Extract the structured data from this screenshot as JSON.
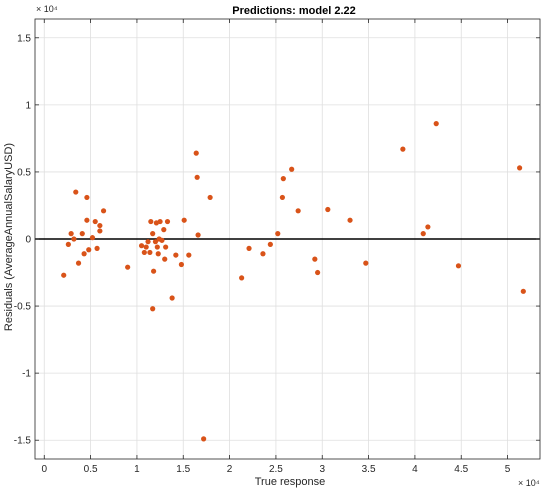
{
  "chart_data": {
    "type": "scatter",
    "title": "Predictions: model 2.22",
    "xlabel": "True response",
    "ylabel": "Residuals (AverageAnnualSalaryUSD)",
    "x_multiplier_label": "× 10⁴",
    "y_multiplier_label": "× 10⁴",
    "xlim": [
      -0.1,
      5.35
    ],
    "ylim": [
      -1.64,
      1.64
    ],
    "x_ticks": [
      0,
      0.5,
      1,
      1.5,
      2,
      2.5,
      3,
      3.5,
      4,
      4.5,
      5
    ],
    "x_tick_labels": [
      "0",
      "0.5",
      "1",
      "1.5",
      "2",
      "2.5",
      "3",
      "3.5",
      "4",
      "4.5",
      "5"
    ],
    "y_ticks": [
      -1.5,
      -1,
      -0.5,
      0,
      0.5,
      1,
      1.5
    ],
    "y_tick_labels": [
      "-1.5",
      "-1",
      "-0.5",
      "0",
      "0.5",
      "1",
      "1.5"
    ],
    "grid": true,
    "zero_line": 0,
    "marker_color": "#d95319",
    "zero_line_color": "#000000",
    "grid_color": "#dfdfdf",
    "units_note": "x and y values in units of 10^4",
    "points": [
      {
        "x": 0.21,
        "y": -0.27
      },
      {
        "x": 0.26,
        "y": -0.04
      },
      {
        "x": 0.29,
        "y": 0.04
      },
      {
        "x": 0.32,
        "y": 0.0
      },
      {
        "x": 0.34,
        "y": 0.35
      },
      {
        "x": 0.37,
        "y": -0.18
      },
      {
        "x": 0.41,
        "y": 0.04
      },
      {
        "x": 0.43,
        "y": -0.11
      },
      {
        "x": 0.46,
        "y": 0.14
      },
      {
        "x": 0.46,
        "y": 0.31
      },
      {
        "x": 0.48,
        "y": -0.08
      },
      {
        "x": 0.52,
        "y": 0.01
      },
      {
        "x": 0.55,
        "y": 0.13
      },
      {
        "x": 0.57,
        "y": -0.07
      },
      {
        "x": 0.6,
        "y": 0.1
      },
      {
        "x": 0.6,
        "y": 0.06
      },
      {
        "x": 0.64,
        "y": 0.21
      },
      {
        "x": 0.9,
        "y": -0.21
      },
      {
        "x": 1.05,
        "y": -0.05
      },
      {
        "x": 1.08,
        "y": -0.1
      },
      {
        "x": 1.1,
        "y": -0.06
      },
      {
        "x": 1.12,
        "y": -0.02
      },
      {
        "x": 1.14,
        "y": -0.1
      },
      {
        "x": 1.15,
        "y": 0.13
      },
      {
        "x": 1.17,
        "y": 0.04
      },
      {
        "x": 1.17,
        "y": -0.52
      },
      {
        "x": 1.18,
        "y": -0.24
      },
      {
        "x": 1.2,
        "y": -0.02
      },
      {
        "x": 1.21,
        "y": 0.12
      },
      {
        "x": 1.22,
        "y": -0.06
      },
      {
        "x": 1.23,
        "y": -0.11
      },
      {
        "x": 1.24,
        "y": 0.0
      },
      {
        "x": 1.25,
        "y": 0.13
      },
      {
        "x": 1.27,
        "y": -0.01
      },
      {
        "x": 1.29,
        "y": 0.07
      },
      {
        "x": 1.3,
        "y": -0.15
      },
      {
        "x": 1.31,
        "y": -0.06
      },
      {
        "x": 1.33,
        "y": 0.13
      },
      {
        "x": 1.38,
        "y": -0.44
      },
      {
        "x": 1.42,
        "y": -0.12
      },
      {
        "x": 1.48,
        "y": -0.19
      },
      {
        "x": 1.51,
        "y": 0.14
      },
      {
        "x": 1.56,
        "y": -0.12
      },
      {
        "x": 1.64,
        "y": 0.64
      },
      {
        "x": 1.65,
        "y": 0.46
      },
      {
        "x": 1.66,
        "y": 0.03
      },
      {
        "x": 1.72,
        "y": -1.49
      },
      {
        "x": 1.79,
        "y": 0.31
      },
      {
        "x": 2.13,
        "y": -0.29
      },
      {
        "x": 2.21,
        "y": -0.07
      },
      {
        "x": 2.36,
        "y": -0.11
      },
      {
        "x": 2.44,
        "y": -0.04
      },
      {
        "x": 2.52,
        "y": 0.04
      },
      {
        "x": 2.57,
        "y": 0.31
      },
      {
        "x": 2.58,
        "y": 0.45
      },
      {
        "x": 2.67,
        "y": 0.52
      },
      {
        "x": 2.74,
        "y": 0.21
      },
      {
        "x": 2.92,
        "y": -0.15
      },
      {
        "x": 2.95,
        "y": -0.25
      },
      {
        "x": 3.06,
        "y": 0.22
      },
      {
        "x": 3.3,
        "y": 0.14
      },
      {
        "x": 3.47,
        "y": -0.18
      },
      {
        "x": 3.87,
        "y": 0.67
      },
      {
        "x": 4.09,
        "y": 0.04
      },
      {
        "x": 4.14,
        "y": 0.09
      },
      {
        "x": 4.23,
        "y": 0.86
      },
      {
        "x": 4.47,
        "y": -0.2
      },
      {
        "x": 5.13,
        "y": 0.53
      },
      {
        "x": 5.17,
        "y": -0.39
      }
    ]
  }
}
